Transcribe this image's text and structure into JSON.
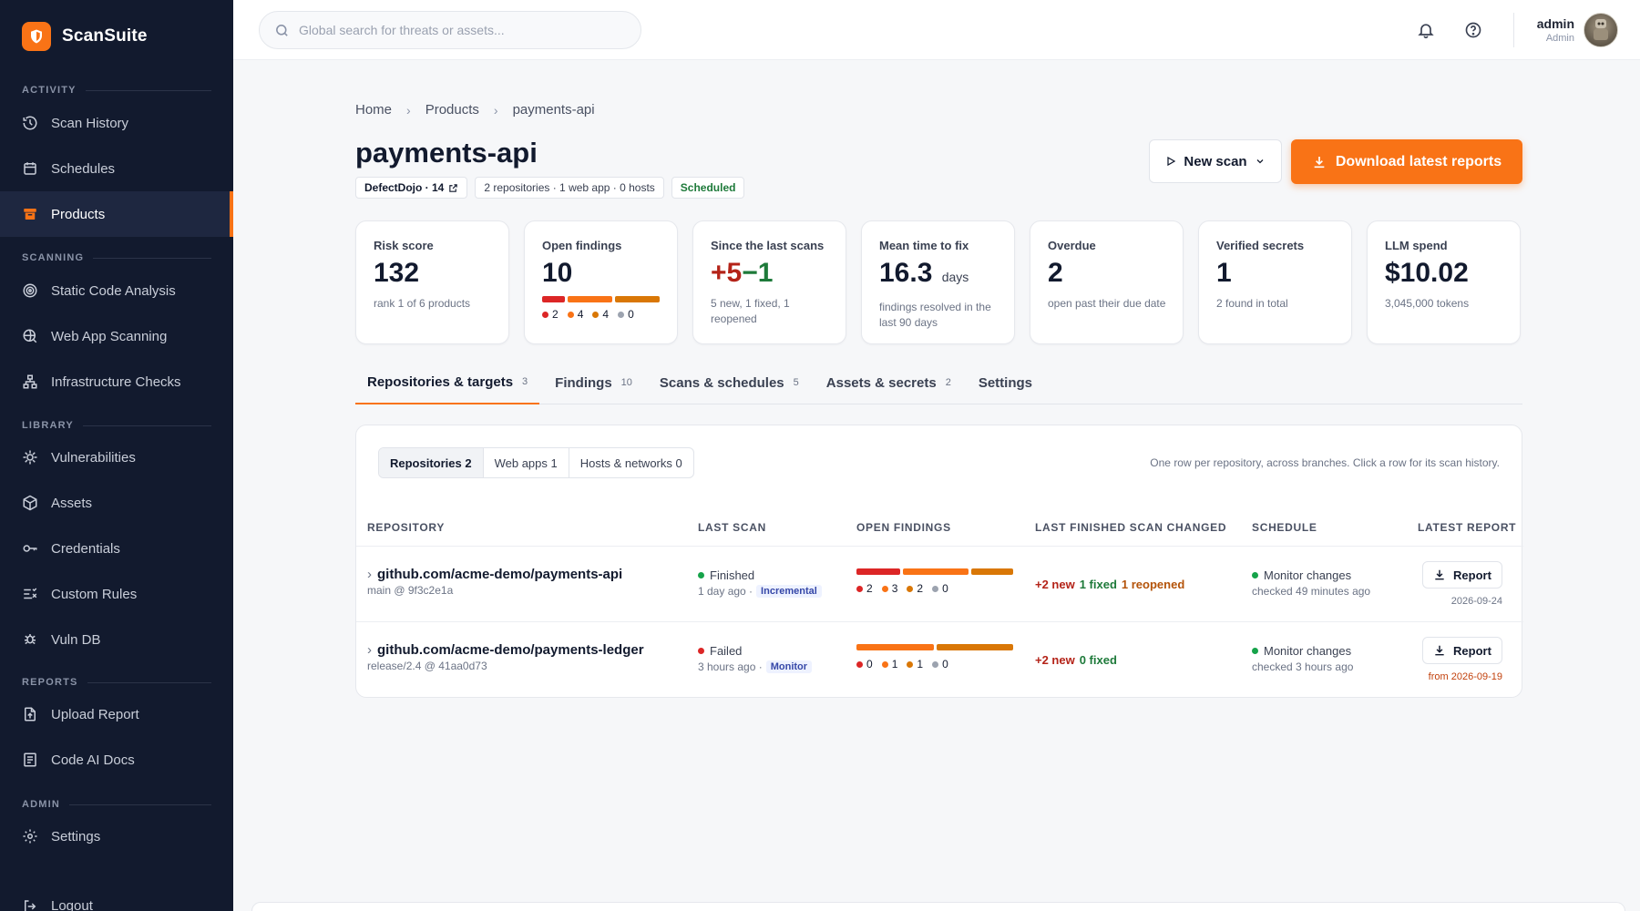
{
  "app": {
    "name": "ScanSuite"
  },
  "sidebar": {
    "sections": [
      {
        "label": "ACTIVITY",
        "items": [
          {
            "label": "Scan History",
            "icon": "history-icon"
          },
          {
            "label": "Schedules",
            "icon": "calendar-icon"
          },
          {
            "label": "Products",
            "icon": "archive-icon",
            "active": true
          }
        ]
      },
      {
        "label": "SCANNING",
        "items": [
          {
            "label": "Static Code Analysis",
            "icon": "target-icon"
          },
          {
            "label": "Web App Scanning",
            "icon": "globe-search-icon"
          },
          {
            "label": "Infrastructure Checks",
            "icon": "network-icon"
          }
        ]
      },
      {
        "label": "LIBRARY",
        "items": [
          {
            "label": "Vulnerabilities",
            "icon": "bug-icon"
          },
          {
            "label": "Assets",
            "icon": "cube-icon"
          },
          {
            "label": "Credentials",
            "icon": "key-icon"
          },
          {
            "label": "Custom Rules",
            "icon": "rules-icon"
          },
          {
            "label": "Vuln DB",
            "icon": "bug-db-icon"
          }
        ]
      },
      {
        "label": "REPORTS",
        "items": [
          {
            "label": "Upload Report",
            "icon": "file-upload-icon"
          },
          {
            "label": "Code AI Docs",
            "icon": "document-icon"
          }
        ]
      },
      {
        "label": "ADMIN",
        "items": [
          {
            "label": "Settings",
            "icon": "gear-icon"
          }
        ]
      }
    ],
    "logout": "Logout"
  },
  "topbar": {
    "search_placeholder": "Global search for threats or assets...",
    "user": {
      "name": "admin",
      "role": "Admin"
    }
  },
  "breadcrumb": [
    "Home",
    "Products",
    "payments-api"
  ],
  "page": {
    "title": "payments-api",
    "tags": {
      "defectdojo": "DefectDojo · 14",
      "summary": "2 repositories · 1 web app · 0 hosts",
      "status": "Scheduled"
    },
    "new_scan": "New scan",
    "download": "Download latest reports"
  },
  "cards": {
    "risk": {
      "label": "Risk score",
      "value": "132",
      "sub": "rank 1 of 6 products"
    },
    "open": {
      "label": "Open findings",
      "value": "10",
      "counts": [
        "2",
        "4",
        "4",
        "0"
      ]
    },
    "since": {
      "label": "Since the last scans",
      "plus": "+5",
      "minus": "−1",
      "sub": "5 new, 1 fixed, 1 reopened"
    },
    "mttf": {
      "label": "Mean time to fix",
      "value": "16.3",
      "unit": "days",
      "sub": "findings resolved in the last 90 days"
    },
    "overdue": {
      "label": "Overdue",
      "value": "2",
      "sub": "open past their due date"
    },
    "secrets": {
      "label": "Verified secrets",
      "value": "1",
      "sub": "2 found in total"
    },
    "llm": {
      "label": "LLM spend",
      "value": "$10.02",
      "sub": "3,045,000 tokens"
    }
  },
  "severity_colors": {
    "critical": "#dc2626",
    "high": "#f97316",
    "medium": "#d97706",
    "low": "#9ca3af"
  },
  "tabs": [
    {
      "label": "Repositories & targets",
      "count": "3"
    },
    {
      "label": "Findings",
      "count": "10"
    },
    {
      "label": "Scans & schedules",
      "count": "5"
    },
    {
      "label": "Assets & secrets",
      "count": "2"
    },
    {
      "label": "Settings",
      "count": ""
    }
  ],
  "panel": {
    "segments": [
      "Repositories 2",
      "Web apps 1",
      "Hosts & networks 0"
    ],
    "hint": "One row per repository, across branches. Click a row for its scan history.",
    "columns": [
      "REPOSITORY",
      "LAST SCAN",
      "OPEN FINDINGS",
      "LAST FINISHED SCAN CHANGED",
      "SCHEDULE",
      "LATEST REPORT"
    ],
    "rows": [
      {
        "repo": "github.com/acme-demo/payments-api",
        "branch": "main @ 9f3c2e1a",
        "status": "Finished",
        "when": "1 day ago ·",
        "mode": "Incremental",
        "findings": [
          "2",
          "3",
          "2",
          "0"
        ],
        "change_new": "+2 new",
        "change_fixed": "1 fixed",
        "change_reopened": "1 reopened",
        "schedule": "Monitor changes",
        "checked": "checked 49 minutes ago",
        "report": "Report",
        "report_date": "2026-09-24"
      },
      {
        "repo": "github.com/acme-demo/payments-ledger",
        "branch": "release/2.4 @ 41aa0d73",
        "status": "Failed",
        "when": "3 hours ago ·",
        "mode": "Monitor",
        "findings": [
          "0",
          "1",
          "1",
          "0"
        ],
        "change_new": "+2 new",
        "change_fixed": "0 fixed",
        "schedule": "Monitor changes",
        "checked": "checked 3 hours ago",
        "report": "Report",
        "report_date": "from 2026-09-19"
      }
    ]
  }
}
